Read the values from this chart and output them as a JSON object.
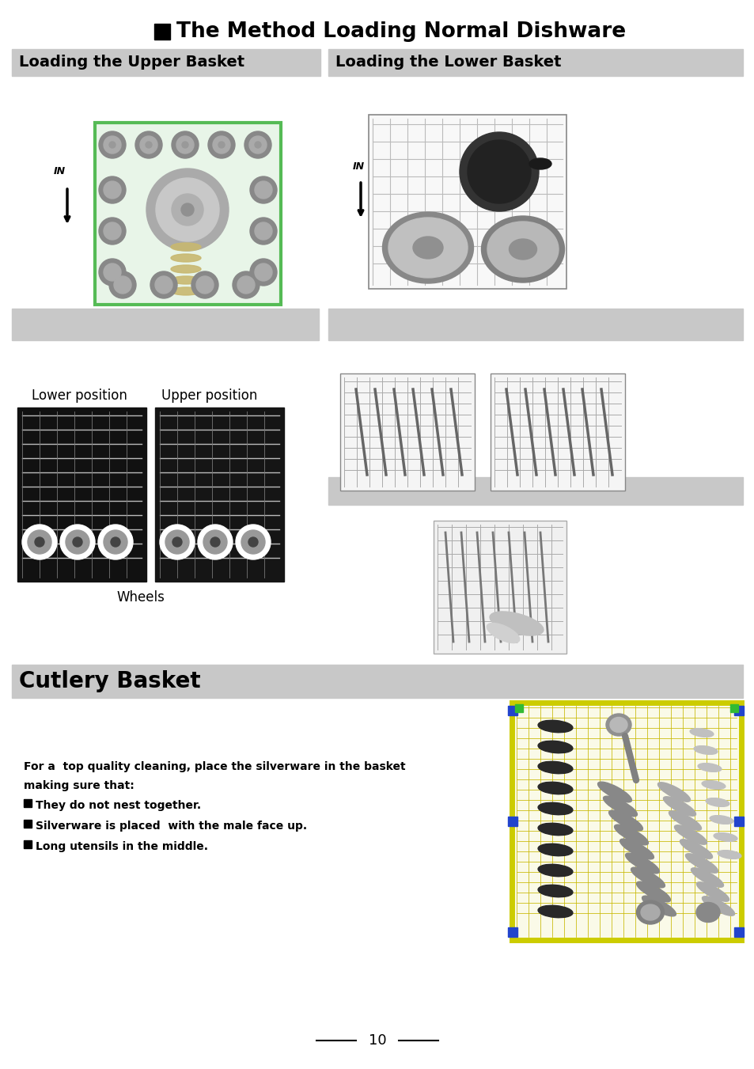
{
  "title": "The Method Loading Normal Dishware",
  "header_left": "Loading the Upper Basket",
  "header_right": "Loading the Lower Basket",
  "section2_header": "Cutlery Basket",
  "lower_pos_label": "Lower position",
  "upper_pos_label": "Upper position",
  "wheels_label": "Wheels",
  "body_text_line1": "For a  top quality cleaning, place the silverware in the basket",
  "body_text_line2": "making sure that:",
  "bullet1": "They do not nest together.",
  "bullet2": "Silverware is placed  with the male face up.",
  "bullet3": "Long utensils in the middle.",
  "page_num": "10",
  "bg_color": "#ffffff",
  "header_bg": "#c8c8c8",
  "gray_bar": "#c8c8c8",
  "green_border": "#55bb55",
  "yellow_border": "#cccc00",
  "blue_clip": "#2244cc"
}
